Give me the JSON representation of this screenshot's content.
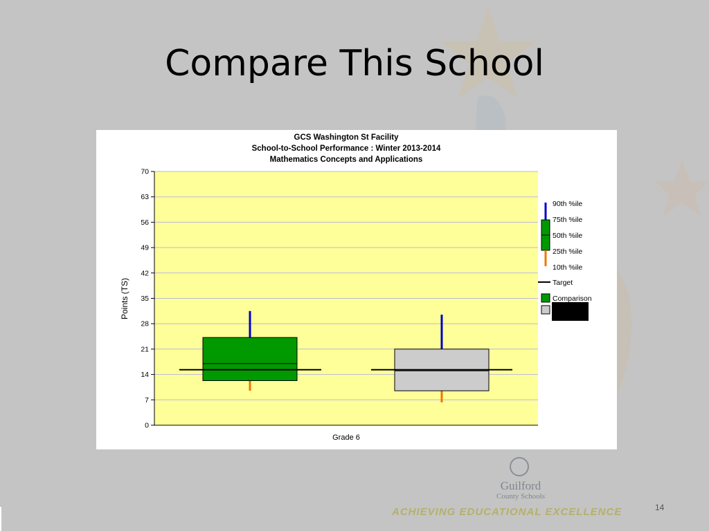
{
  "slide": {
    "title": "Compare This School",
    "page_number": "14",
    "tagline": "ACHIEVING EDUCATIONAL EXCELLENCE",
    "logo_name": "Guilford",
    "logo_sub": "County Schools"
  },
  "colors": {
    "slide_bg": "#c4c4c4",
    "plot_bg": "#ffff99",
    "grid": "#b8b8e0",
    "school_box": "#009900",
    "comparison_box": "#cccccc",
    "upper_whisker": "#0000cc",
    "lower_whisker": "#ee7700",
    "target": "#000000"
  },
  "chart_data": {
    "type": "boxplot",
    "title_lines": [
      "GCS Washington St Facility",
      "School-to-School Performance : Winter 2013-2014",
      "Mathematics Concepts and Applications"
    ],
    "xlabel": "Grade 6",
    "ylabel": "Points (TS)",
    "ylim": [
      0,
      70
    ],
    "yticks": [
      0,
      7,
      14,
      21,
      28,
      35,
      42,
      49,
      56,
      63,
      70
    ],
    "grid": true,
    "legend_position": "right",
    "legend": {
      "percentiles": [
        "90th %ile",
        "75th %ile",
        "50th %ile",
        "25th %ile",
        "10th %ile"
      ],
      "target": "Target",
      "comparison": "Comparison",
      "school": ""
    },
    "series": [
      {
        "name": "",
        "color": "#009900",
        "p10": 9.5,
        "p25": 12.3,
        "p50": 17,
        "p75": 24.2,
        "p90": 31.5,
        "target": 15.3
      },
      {
        "name": "Comparison",
        "color": "#cccccc",
        "p10": 6.3,
        "p25": 9.5,
        "p50": 15,
        "p75": 21,
        "p90": 30.5,
        "target": 15.3
      }
    ]
  }
}
